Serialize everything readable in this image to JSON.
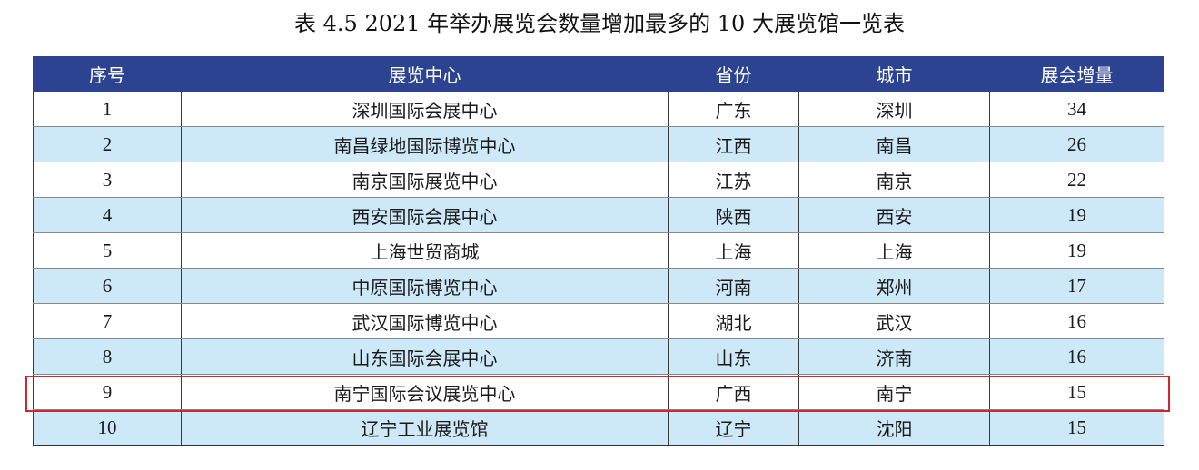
{
  "title": "表 4.5  2021 年举办展览会数量增加最多的 10 大展览馆一览表",
  "columns": [
    "序号",
    "展览中心",
    "省份",
    "城市",
    "展会增量"
  ],
  "rows": [
    [
      "1",
      "深圳国际会展中心",
      "广东",
      "深圳",
      "34"
    ],
    [
      "2",
      "南昌绿地国际博览中心",
      "江西",
      "南昌",
      "26"
    ],
    [
      "3",
      "南京国际展览中心",
      "江苏",
      "南京",
      "22"
    ],
    [
      "4",
      "西安国际会展中心",
      "陕西",
      "西安",
      "19"
    ],
    [
      "5",
      "上海世贸商城",
      "上海",
      "上海",
      "19"
    ],
    [
      "6",
      "中原国际博览中心",
      "河南",
      "郑州",
      "17"
    ],
    [
      "7",
      "武汉国际博览中心",
      "湖北",
      "武汉",
      "16"
    ],
    [
      "8",
      "山东国际会展中心",
      "山东",
      "济南",
      "16"
    ],
    [
      "9",
      "南宁国际会议展览中心",
      "广西",
      "南宁",
      "15"
    ],
    [
      "10",
      "辽宁工业展览馆",
      "辽宁",
      "沈阳",
      "15"
    ]
  ],
  "highlighted_row": 9,
  "colors": {
    "header_bg": "#2b4390",
    "alt_row_bg": "#cde8f6",
    "highlight_border": "#d0262d"
  }
}
